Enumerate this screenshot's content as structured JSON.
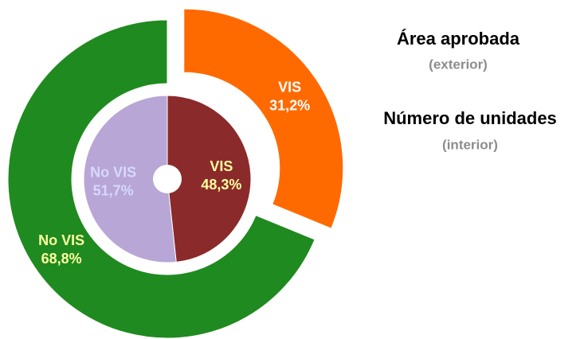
{
  "chart_data": {
    "type": "nested-donut",
    "categories": [
      "VIS",
      "No VIS"
    ],
    "series": [
      {
        "name": "Área aprobada",
        "ring": "(exterior)",
        "values": [
          31.2,
          68.8
        ],
        "value_labels": [
          "31,2%",
          "68,8%"
        ],
        "colors": [
          "#ff6a00",
          "#1f8a1f"
        ],
        "explode": [
          true,
          false
        ]
      },
      {
        "name": "Número de unidades",
        "ring": "(interior)",
        "values": [
          48.3,
          51.7
        ],
        "value_labels": [
          "48,3%",
          "51,7%"
        ],
        "colors": [
          "#8b2a2a",
          "#b8a6d6"
        ],
        "explode": [
          false,
          false
        ]
      }
    ]
  }
}
